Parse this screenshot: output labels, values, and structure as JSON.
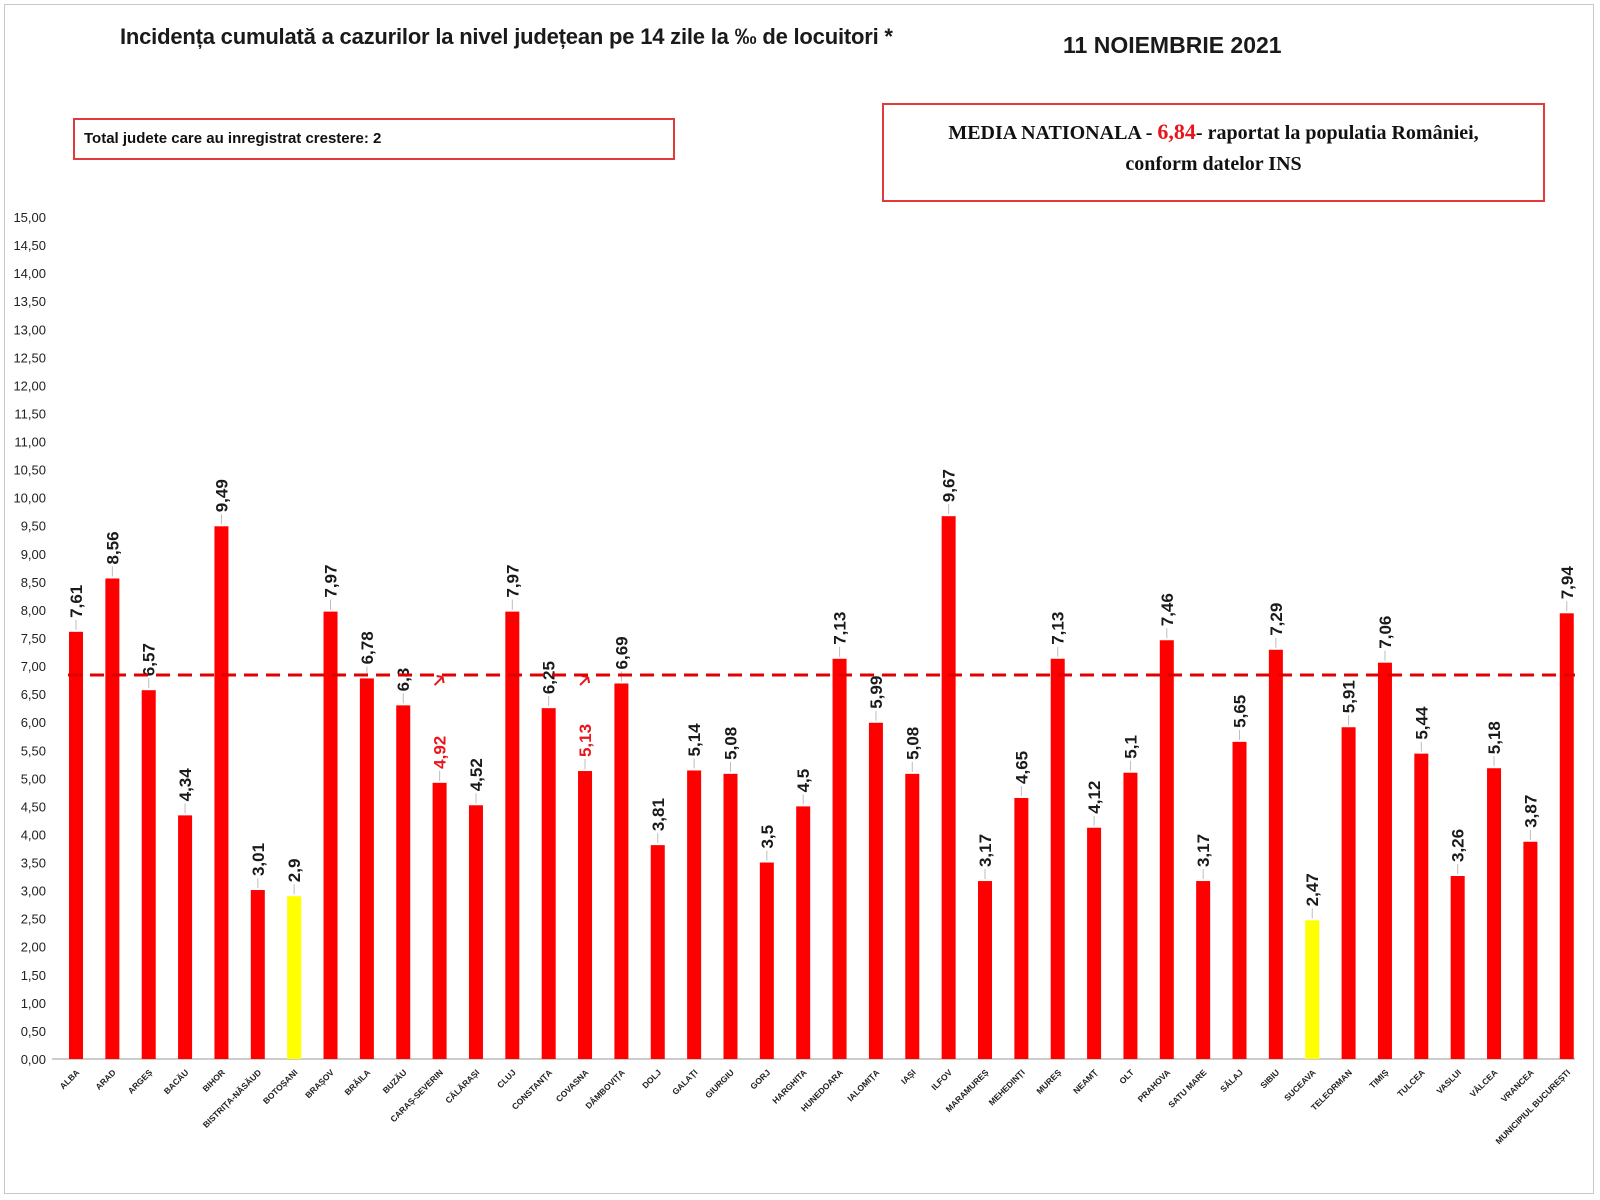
{
  "header": {
    "title": "Incidența cumulată a cazurilor la nivel județean pe 14 zile la ‰ de locuitori *",
    "date": "11 NOIEMBRIE 2021"
  },
  "info_left": {
    "text": "Total judete care au inregistrat crestere: 2"
  },
  "info_right": {
    "prefix": "MEDIA NATIONALA - ",
    "value": "6,84",
    "suffix": "-  raportat la populatia României,",
    "line2": "conform datelor INS"
  },
  "colors": {
    "bar": "#ff0000",
    "highlight": "#ffff00",
    "mean_line": "#e00000",
    "red_label": "#e8151b"
  },
  "chart_data": {
    "type": "bar",
    "title": "Incidența cumulată a cazurilor la nivel județean pe 14 zile la ‰ de locuitori *",
    "xlabel": "",
    "ylabel": "",
    "ylim": [
      0,
      15
    ],
    "ytick_step": 0.5,
    "yticks": [
      "0,00",
      "0,50",
      "1,00",
      "1,50",
      "2,00",
      "2,50",
      "3,00",
      "3,50",
      "4,00",
      "4,50",
      "5,00",
      "5,50",
      "6,00",
      "6,50",
      "7,00",
      "7,50",
      "8,00",
      "8,50",
      "9,00",
      "9,50",
      "10,00",
      "10,50",
      "11,00",
      "11,50",
      "12,00",
      "12,50",
      "13,00",
      "13,50",
      "14,00",
      "14,50",
      "15,00"
    ],
    "mean_line": 6.84,
    "categories": [
      "ALBA",
      "ARAD",
      "ARGEȘ",
      "BACĂU",
      "BIHOR",
      "BISTRIȚA-NĂSĂUD",
      "BOTOȘANI",
      "BRAȘOV",
      "BRĂILA",
      "BUZĂU",
      "CARAȘ-SEVERIN",
      "CĂLĂRAȘI",
      "CLUJ",
      "CONSTANȚA",
      "COVASNA",
      "DÂMBOVIȚA",
      "DOLJ",
      "GALAȚI",
      "GIURGIU",
      "GORJ",
      "HARGHITA",
      "HUNEDOARA",
      "IALOMIȚA",
      "IAȘI",
      "ILFOV",
      "MARAMUREȘ",
      "MEHEDINȚI",
      "MUREȘ",
      "NEAMȚ",
      "OLT",
      "PRAHOVA",
      "SATU MARE",
      "SĂLAJ",
      "SIBIU",
      "SUCEAVA",
      "TELEORMAN",
      "TIMIȘ",
      "TULCEA",
      "VASLUI",
      "VÂLCEA",
      "VRANCEA",
      "MUNICIPIUL BUCUREȘTI"
    ],
    "values": [
      7.61,
      8.56,
      6.57,
      4.34,
      9.49,
      3.01,
      2.9,
      7.97,
      6.78,
      6.3,
      4.92,
      4.52,
      7.97,
      6.25,
      5.13,
      6.69,
      3.81,
      5.14,
      5.08,
      3.5,
      4.5,
      7.13,
      5.99,
      5.08,
      9.67,
      3.17,
      4.65,
      7.13,
      4.12,
      5.1,
      7.46,
      3.17,
      5.65,
      7.29,
      2.47,
      5.91,
      7.06,
      5.44,
      3.26,
      5.18,
      3.87,
      7.94
    ],
    "labels": [
      "7,61",
      "8,56",
      "6,57",
      "4,34",
      "9,49",
      "3,01",
      "2,9",
      "7,97",
      "6,78",
      "6,3",
      "4,92",
      "4,52",
      "7,97",
      "6,25",
      "5,13",
      "6,69",
      "3,81",
      "5,14",
      "5,08",
      "3,5",
      "4,5",
      "7,13",
      "5,99",
      "5,08",
      "9,67",
      "3,17",
      "4,65",
      "7,13",
      "4,12",
      "5,1",
      "7,46",
      "3,17",
      "5,65",
      "7,29",
      "2,47",
      "5,91",
      "7,06",
      "5,44",
      "3,26",
      "5,18",
      "3,87",
      "7,94"
    ],
    "highlighted": [
      "BOTOȘANI",
      "SUCEAVA"
    ],
    "increased": [
      "CARAȘ-SEVERIN",
      "COVASNA"
    ]
  }
}
